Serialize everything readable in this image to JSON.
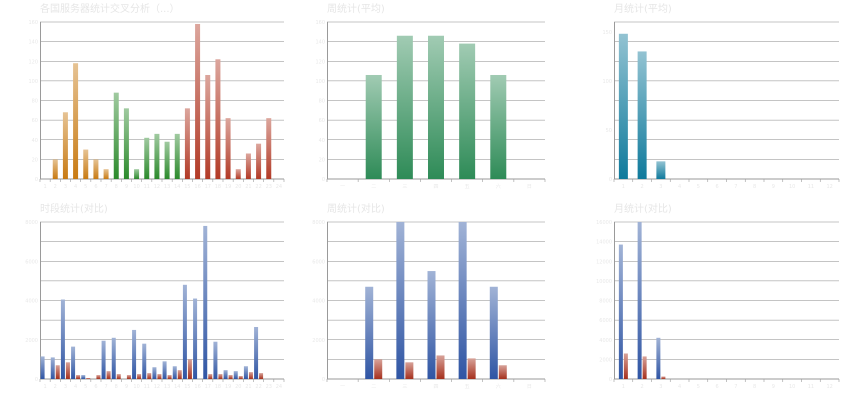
{
  "chart_data": [
    {
      "type": "bar",
      "title": "各国服务器统计交叉分析（...）",
      "ylim": [
        0,
        160
      ],
      "yticks": [
        "0",
        "20",
        "40",
        "60",
        "80",
        "100",
        "120",
        "140",
        "160"
      ],
      "categories": [
        "1",
        "2",
        "3",
        "4",
        "5",
        "6",
        "7",
        "8",
        "9",
        "10",
        "11",
        "12",
        "13",
        "14",
        "15",
        "16",
        "17",
        "18",
        "19",
        "20",
        "21",
        "22",
        "23",
        "24"
      ],
      "series": [
        {
          "values": [
            0,
            20,
            68,
            118,
            30,
            20,
            10,
            88,
            72,
            10,
            42,
            46,
            38,
            46,
            72,
            158,
            106,
            122,
            62,
            10,
            26,
            36,
            62,
            0
          ],
          "bar_colors": [
            "#c87a12",
            "#c87a12",
            "#c87a12",
            "#c87a12",
            "#c87a12",
            "#c87a12",
            "#c87a12",
            "#2b8a2b",
            "#2b8a2b",
            "#2b8a2b",
            "#2b8a2b",
            "#2b8a2b",
            "#2b8a2b",
            "#2b8a2b",
            "#b23a26",
            "#b23a26",
            "#b23a26",
            "#b23a26",
            "#b23a26",
            "#b23a26",
            "#b23a26",
            "#b23a26",
            "#b23a26",
            "#b23a26"
          ]
        }
      ],
      "grid": true
    },
    {
      "type": "bar",
      "title": "周统计(平均)",
      "ylim": [
        0,
        160
      ],
      "yticks": [
        "0",
        "20",
        "40",
        "60",
        "80",
        "100",
        "120",
        "140",
        "160"
      ],
      "categories": [
        "一",
        "二",
        "三",
        "四",
        "五",
        "六",
        "日"
      ],
      "series": [
        {
          "values": [
            0,
            106,
            146,
            146,
            138,
            106,
            0
          ],
          "color": "#2e8b57"
        }
      ],
      "grid": true
    },
    {
      "type": "bar",
      "title": "月统计(平均)",
      "ylim": [
        0,
        160
      ],
      "yticks": [
        "0",
        "50",
        "100",
        "150"
      ],
      "categories": [
        "1",
        "2",
        "3",
        "4",
        "5",
        "6",
        "7",
        "8",
        "9",
        "10",
        "11",
        "12"
      ],
      "series": [
        {
          "values": [
            148,
            130,
            18,
            0,
            0,
            0,
            0,
            0,
            0,
            0,
            0,
            0
          ],
          "color": "#0f7a9c"
        }
      ],
      "grid": true
    },
    {
      "type": "bar",
      "title": "时段统计(对比)",
      "ylim": [
        0,
        8000
      ],
      "yticks": [
        "0",
        "2000",
        "4000",
        "6000",
        "8000"
      ],
      "categories": [
        "1",
        "2",
        "3",
        "4",
        "5",
        "6",
        "7",
        "8",
        "9",
        "10",
        "11",
        "12",
        "13",
        "14",
        "15",
        "16",
        "17",
        "18",
        "19",
        "20",
        "21",
        "22",
        "23",
        "24"
      ],
      "series": [
        {
          "values": [
            1150,
            1100,
            4050,
            1650,
            200,
            0,
            1950,
            2100,
            0,
            2500,
            1800,
            600,
            900,
            650,
            4800,
            4100,
            7800,
            1900,
            450,
            400,
            650,
            2650,
            0,
            0
          ],
          "color": "#2f55a4"
        },
        {
          "values": [
            0,
            700,
            850,
            200,
            50,
            200,
            400,
            250,
            200,
            250,
            300,
            250,
            200,
            450,
            1000,
            0,
            250,
            250,
            200,
            150,
            350,
            300,
            0,
            0
          ],
          "color": "#a5301d"
        }
      ],
      "grid": true
    },
    {
      "type": "bar",
      "title": "周统计(对比)",
      "ylim": [
        0,
        8000
      ],
      "yticks": [
        "0",
        "2000",
        "4000",
        "6000",
        "8000"
      ],
      "categories": [
        "一",
        "二",
        "三",
        "四",
        "五",
        "六",
        "日"
      ],
      "series": [
        {
          "values": [
            0,
            4700,
            8000,
            5500,
            8000,
            4700,
            0
          ],
          "color": "#2f55a4"
        },
        {
          "values": [
            0,
            1000,
            850,
            1200,
            1050,
            700,
            0
          ],
          "color": "#a5301d"
        }
      ],
      "grid": true
    },
    {
      "type": "bar",
      "title": "月统计(对比)",
      "ylim": [
        0,
        16000
      ],
      "yticks": [
        "0",
        "2000",
        "4000",
        "6000",
        "8000",
        "10000",
        "12000",
        "14000",
        "16000"
      ],
      "categories": [
        "1",
        "2",
        "3",
        "4",
        "5",
        "6",
        "7",
        "8",
        "9",
        "10",
        "11",
        "12"
      ],
      "series": [
        {
          "values": [
            13700,
            16000,
            4200,
            0,
            0,
            0,
            0,
            0,
            0,
            0,
            0,
            0
          ],
          "color": "#2f55a4"
        },
        {
          "values": [
            2600,
            2300,
            250,
            0,
            0,
            0,
            0,
            0,
            0,
            0,
            0,
            0
          ],
          "color": "#a5301d"
        }
      ],
      "grid": true
    }
  ]
}
